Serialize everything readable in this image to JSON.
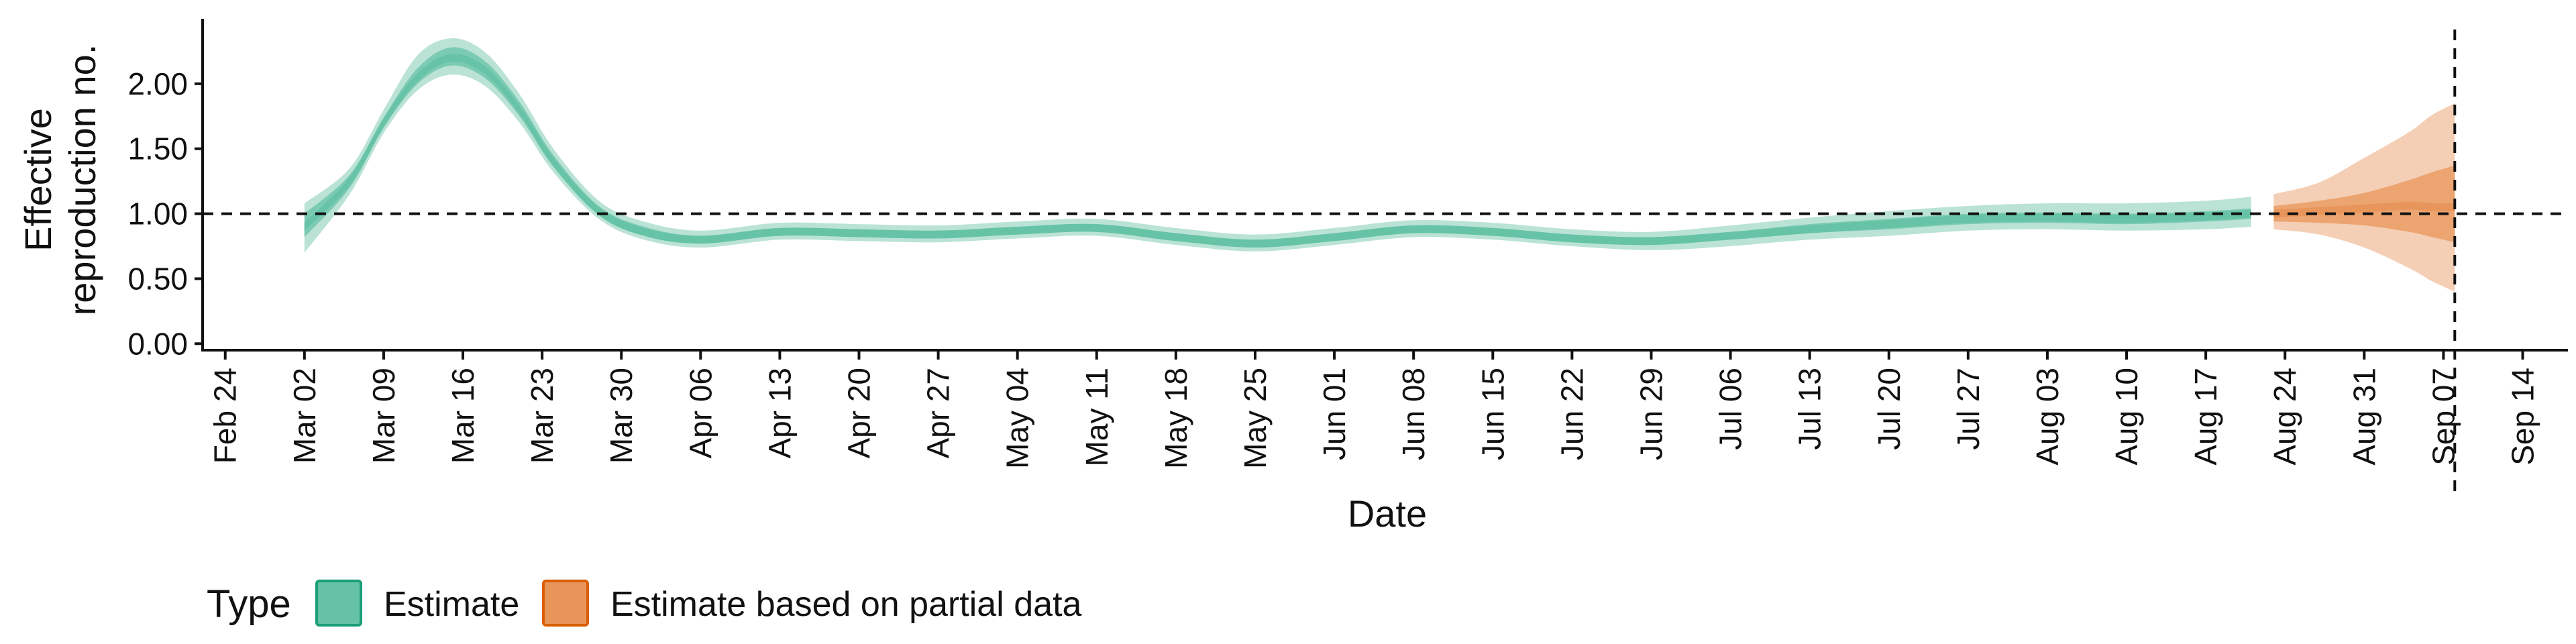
{
  "chart_data": {
    "type": "area",
    "title": "",
    "xlabel": "Date",
    "ylabel": [
      "Effective",
      "reproduction no."
    ],
    "x_tick_labels": [
      "Feb 24",
      "Mar 02",
      "Mar 09",
      "Mar 16",
      "Mar 23",
      "Mar 30",
      "Apr 06",
      "Apr 13",
      "Apr 20",
      "Apr 27",
      "May 04",
      "May 11",
      "May 18",
      "May 25",
      "Jun 01",
      "Jun 08",
      "Jun 15",
      "Jun 22",
      "Jun 29",
      "Jul 06",
      "Jul 13",
      "Jul 20",
      "Jul 27",
      "Aug 03",
      "Aug 10",
      "Aug 17",
      "Aug 24",
      "Aug 31",
      "Sep 07",
      "Sep 14"
    ],
    "x_tick_dates": [
      "2020-02-24",
      "2020-03-02",
      "2020-03-09",
      "2020-03-16",
      "2020-03-23",
      "2020-03-30",
      "2020-04-06",
      "2020-04-13",
      "2020-04-20",
      "2020-04-27",
      "2020-05-04",
      "2020-05-11",
      "2020-05-18",
      "2020-05-25",
      "2020-06-01",
      "2020-06-08",
      "2020-06-15",
      "2020-06-22",
      "2020-06-29",
      "2020-07-06",
      "2020-07-13",
      "2020-07-20",
      "2020-07-27",
      "2020-08-03",
      "2020-08-10",
      "2020-08-17",
      "2020-08-24",
      "2020-08-31",
      "2020-09-07",
      "2020-09-14"
    ],
    "y_tick_labels": [
      "0.00",
      "0.50",
      "1.00",
      "1.50",
      "2.00"
    ],
    "y_ticks": [
      0,
      0.5,
      1.0,
      1.5,
      2.0
    ],
    "ylim": [
      -0.05,
      2.5
    ],
    "xlim": [
      "2020-02-22",
      "2020-09-18"
    ],
    "reference_line_y": 1.0,
    "vertical_line_x": "2020-09-08",
    "legend": {
      "title": "Type",
      "position": "bottom-left"
    },
    "colors": {
      "estimate": "#1b9e77",
      "estimate_fill": "#66c2a5",
      "partial": "#d95f02",
      "partial_fill": "#e8955a"
    },
    "series": [
      {
        "name": "Estimate",
        "points": [
          {
            "date": "2020-03-02",
            "median": 0.9,
            "lo50": 0.82,
            "hi50": 1.0,
            "lo90": 0.7,
            "hi90": 1.08
          },
          {
            "date": "2020-03-06",
            "median": 1.25,
            "lo50": 1.2,
            "hi50": 1.3,
            "lo90": 1.15,
            "hi90": 1.35
          },
          {
            "date": "2020-03-09",
            "median": 1.7,
            "lo50": 1.66,
            "hi50": 1.74,
            "lo90": 1.62,
            "hi90": 1.8
          },
          {
            "date": "2020-03-12",
            "median": 2.05,
            "lo50": 2.0,
            "hi50": 2.12,
            "lo90": 1.95,
            "hi90": 2.22
          },
          {
            "date": "2020-03-15",
            "median": 2.2,
            "lo50": 2.14,
            "hi50": 2.28,
            "lo90": 2.07,
            "hi90": 2.35
          },
          {
            "date": "2020-03-18",
            "median": 2.1,
            "lo50": 2.04,
            "hi50": 2.17,
            "lo90": 1.98,
            "hi90": 2.24
          },
          {
            "date": "2020-03-21",
            "median": 1.8,
            "lo50": 1.75,
            "hi50": 1.86,
            "lo90": 1.7,
            "hi90": 1.92
          },
          {
            "date": "2020-03-24",
            "median": 1.4,
            "lo50": 1.36,
            "hi50": 1.45,
            "lo90": 1.32,
            "hi90": 1.5
          },
          {
            "date": "2020-03-28",
            "median": 1.02,
            "lo50": 0.99,
            "hi50": 1.06,
            "lo90": 0.96,
            "hi90": 1.1
          },
          {
            "date": "2020-04-01",
            "median": 0.86,
            "lo50": 0.83,
            "hi50": 0.9,
            "lo90": 0.8,
            "hi90": 0.94
          },
          {
            "date": "2020-04-06",
            "median": 0.8,
            "lo50": 0.77,
            "hi50": 0.83,
            "lo90": 0.74,
            "hi90": 0.87
          },
          {
            "date": "2020-04-13",
            "median": 0.86,
            "lo50": 0.83,
            "hi50": 0.89,
            "lo90": 0.8,
            "hi90": 0.93
          },
          {
            "date": "2020-04-20",
            "median": 0.85,
            "lo50": 0.82,
            "hi50": 0.88,
            "lo90": 0.79,
            "hi90": 0.92
          },
          {
            "date": "2020-04-27",
            "median": 0.84,
            "lo50": 0.81,
            "hi50": 0.87,
            "lo90": 0.78,
            "hi90": 0.91
          },
          {
            "date": "2020-05-04",
            "median": 0.87,
            "lo50": 0.84,
            "hi50": 0.9,
            "lo90": 0.81,
            "hi90": 0.94
          },
          {
            "date": "2020-05-11",
            "median": 0.89,
            "lo50": 0.86,
            "hi50": 0.92,
            "lo90": 0.83,
            "hi90": 0.96
          },
          {
            "date": "2020-05-18",
            "median": 0.82,
            "lo50": 0.79,
            "hi50": 0.85,
            "lo90": 0.76,
            "hi90": 0.89
          },
          {
            "date": "2020-05-25",
            "median": 0.77,
            "lo50": 0.74,
            "hi50": 0.8,
            "lo90": 0.71,
            "hi90": 0.84
          },
          {
            "date": "2020-06-01",
            "median": 0.82,
            "lo50": 0.79,
            "hi50": 0.85,
            "lo90": 0.76,
            "hi90": 0.89
          },
          {
            "date": "2020-06-08",
            "median": 0.88,
            "lo50": 0.85,
            "hi50": 0.91,
            "lo90": 0.82,
            "hi90": 0.95
          },
          {
            "date": "2020-06-15",
            "median": 0.86,
            "lo50": 0.83,
            "hi50": 0.89,
            "lo90": 0.8,
            "hi90": 0.93
          },
          {
            "date": "2020-06-22",
            "median": 0.81,
            "lo50": 0.78,
            "hi50": 0.84,
            "lo90": 0.75,
            "hi90": 0.88
          },
          {
            "date": "2020-06-29",
            "median": 0.79,
            "lo50": 0.76,
            "hi50": 0.82,
            "lo90": 0.72,
            "hi90": 0.86
          },
          {
            "date": "2020-07-06",
            "median": 0.83,
            "lo50": 0.8,
            "hi50": 0.86,
            "lo90": 0.75,
            "hi90": 0.91
          },
          {
            "date": "2020-07-13",
            "median": 0.88,
            "lo50": 0.85,
            "hi50": 0.92,
            "lo90": 0.8,
            "hi90": 0.97
          },
          {
            "date": "2020-07-20",
            "median": 0.92,
            "lo50": 0.88,
            "hi50": 0.96,
            "lo90": 0.83,
            "hi90": 1.02
          },
          {
            "date": "2020-07-27",
            "median": 0.96,
            "lo50": 0.92,
            "hi50": 1.0,
            "lo90": 0.87,
            "hi90": 1.06
          },
          {
            "date": "2020-08-03",
            "median": 0.97,
            "lo50": 0.93,
            "hi50": 1.01,
            "lo90": 0.88,
            "hi90": 1.08
          },
          {
            "date": "2020-08-10",
            "median": 0.96,
            "lo50": 0.92,
            "hi50": 1.0,
            "lo90": 0.87,
            "hi90": 1.08
          },
          {
            "date": "2020-08-17",
            "median": 0.98,
            "lo50": 0.94,
            "hi50": 1.02,
            "lo90": 0.88,
            "hi90": 1.1
          },
          {
            "date": "2020-08-21",
            "median": 1.0,
            "lo50": 0.96,
            "hi50": 1.04,
            "lo90": 0.9,
            "hi90": 1.13
          }
        ]
      },
      {
        "name": "Estimate based on partial data",
        "points": [
          {
            "date": "2020-08-23",
            "median": 1.0,
            "lo50": 0.94,
            "hi50": 1.06,
            "lo90": 0.88,
            "hi90": 1.15
          },
          {
            "date": "2020-08-27",
            "median": 1.02,
            "lo50": 0.93,
            "hi50": 1.1,
            "lo90": 0.84,
            "hi90": 1.24
          },
          {
            "date": "2020-08-31",
            "median": 1.04,
            "lo50": 0.91,
            "hi50": 1.16,
            "lo90": 0.74,
            "hi90": 1.43
          },
          {
            "date": "2020-09-04",
            "median": 1.06,
            "lo50": 0.86,
            "hi50": 1.26,
            "lo90": 0.58,
            "hi90": 1.63
          },
          {
            "date": "2020-09-06",
            "median": 1.05,
            "lo50": 0.82,
            "hi50": 1.32,
            "lo90": 0.48,
            "hi90": 1.76
          },
          {
            "date": "2020-09-08",
            "median": 1.05,
            "lo50": 0.78,
            "hi50": 1.37,
            "lo90": 0.4,
            "hi90": 1.85
          }
        ]
      }
    ]
  }
}
